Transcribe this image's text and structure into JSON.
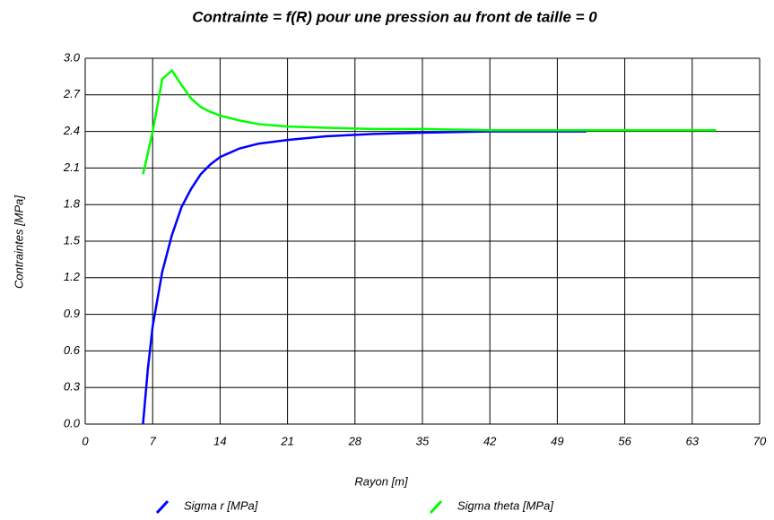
{
  "chart_data": {
    "type": "line",
    "title": "Contrainte = f(R) pour une pression au front de taille = 0",
    "xlabel": "Rayon [m]",
    "ylabel": "Contraintes [MPa]",
    "x": [
      6,
      6.5,
      7,
      8,
      9,
      10,
      11,
      12,
      13,
      14,
      16,
      18,
      21,
      25,
      30,
      35,
      42,
      52,
      65.5
    ],
    "series": [
      {
        "name": "Sigma r [MPa]",
        "color": "#0000ff",
        "values": [
          0,
          0.45,
          0.8,
          1.25,
          1.55,
          1.78,
          1.93,
          2.05,
          2.13,
          2.19,
          2.26,
          2.3,
          2.33,
          2.36,
          2.38,
          2.39,
          2.4,
          2.4,
          null
        ]
      },
      {
        "name": "Sigma theta [MPa]",
        "color": "#00ff00",
        "values": [
          2.05,
          2.22,
          2.4,
          2.83,
          2.9,
          2.78,
          2.67,
          2.6,
          2.56,
          2.53,
          2.49,
          2.46,
          2.44,
          2.43,
          2.42,
          2.42,
          2.41,
          2.41,
          2.41
        ]
      }
    ],
    "xlim": [
      0,
      70
    ],
    "xticks": [
      0,
      7,
      14,
      21,
      28,
      35,
      42,
      49,
      56,
      63,
      70
    ],
    "ylim": [
      0,
      3
    ],
    "yticks": [
      {
        "value": 0,
        "label": "0.0"
      },
      0.3,
      0.6,
      0.9,
      1.2,
      1.5,
      1.8,
      2.1,
      2.4,
      2.7,
      {
        "value": 3,
        "label": "3.0"
      }
    ],
    "grid": true,
    "legend": "bottom"
  }
}
